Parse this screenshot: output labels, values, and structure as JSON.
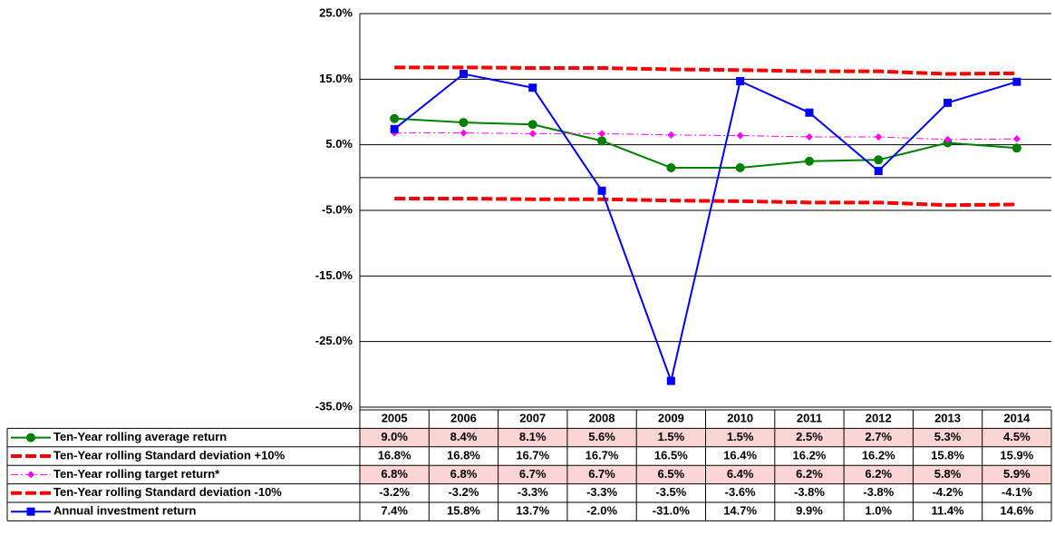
{
  "chart_data": {
    "type": "line",
    "categories": [
      "2005",
      "2006",
      "2007",
      "2008",
      "2009",
      "2010",
      "2011",
      "2012",
      "2013",
      "2014"
    ],
    "ylim": [
      -35,
      25
    ],
    "yticks": [
      {
        "value": -35,
        "label": "-35.0%"
      },
      {
        "value": -25,
        "label": "-25.0%"
      },
      {
        "value": -15,
        "label": "-15.0%"
      },
      {
        "value": -5,
        "label": "-5.0%"
      },
      {
        "value": 5,
        "label": "5.0%"
      },
      {
        "value": 15,
        "label": "15.0%"
      },
      {
        "value": 25,
        "label": "25.0%"
      }
    ],
    "grid": true,
    "series": [
      {
        "name": "Ten-Year rolling average return",
        "color": "#008000",
        "marker": "circle",
        "dash": "solid",
        "cell_color": "#fbd4d4",
        "values": [
          9.0,
          8.4,
          8.1,
          5.6,
          1.5,
          1.5,
          2.5,
          2.7,
          5.3,
          4.5
        ],
        "value_labels": [
          "9.0%",
          "8.4%",
          "8.1%",
          "5.6%",
          "1.5%",
          "1.5%",
          "2.5%",
          "2.7%",
          "5.3%",
          "4.5%"
        ]
      },
      {
        "name": "Ten-Year rolling Standard deviation +10%",
        "color": "#ff0000",
        "marker": null,
        "dash": "dashed",
        "values": [
          16.8,
          16.8,
          16.7,
          16.7,
          16.5,
          16.4,
          16.2,
          16.2,
          15.8,
          15.9
        ],
        "value_labels": [
          "16.8%",
          "16.8%",
          "16.7%",
          "16.7%",
          "16.5%",
          "16.4%",
          "16.2%",
          "16.2%",
          "15.8%",
          "15.9%"
        ]
      },
      {
        "name": "Ten-Year rolling target return*",
        "color": "#ff00ff",
        "marker": "diamond",
        "dash": "dashdot",
        "cell_color": "#fbd4d4",
        "values": [
          6.8,
          6.8,
          6.7,
          6.7,
          6.5,
          6.4,
          6.2,
          6.2,
          5.8,
          5.9
        ],
        "value_labels": [
          "6.8%",
          "6.8%",
          "6.7%",
          "6.7%",
          "6.5%",
          "6.4%",
          "6.2%",
          "6.2%",
          "5.8%",
          "5.9%"
        ]
      },
      {
        "name": "Ten-Year rolling Standard deviation -10%",
        "color": "#ff0000",
        "marker": null,
        "dash": "dashed",
        "values": [
          -3.2,
          -3.2,
          -3.3,
          -3.3,
          -3.5,
          -3.6,
          -3.8,
          -3.8,
          -4.2,
          -4.1
        ],
        "value_labels": [
          "-3.2%",
          "-3.2%",
          "-3.3%",
          "-3.3%",
          "-3.5%",
          "-3.6%",
          "-3.8%",
          "-3.8%",
          "-4.2%",
          "-4.1%"
        ]
      },
      {
        "name": "Annual investment return",
        "color": "#0000ff",
        "marker": "square",
        "dash": "solid",
        "values": [
          7.4,
          15.8,
          13.7,
          -2.0,
          -31.0,
          14.7,
          9.9,
          1.0,
          11.4,
          14.6
        ],
        "value_labels": [
          "7.4%",
          "15.8%",
          "13.7%",
          "-2.0%",
          "-31.0%",
          "14.7%",
          "9.9%",
          "1.0%",
          "11.4%",
          "14.6%"
        ]
      }
    ]
  }
}
